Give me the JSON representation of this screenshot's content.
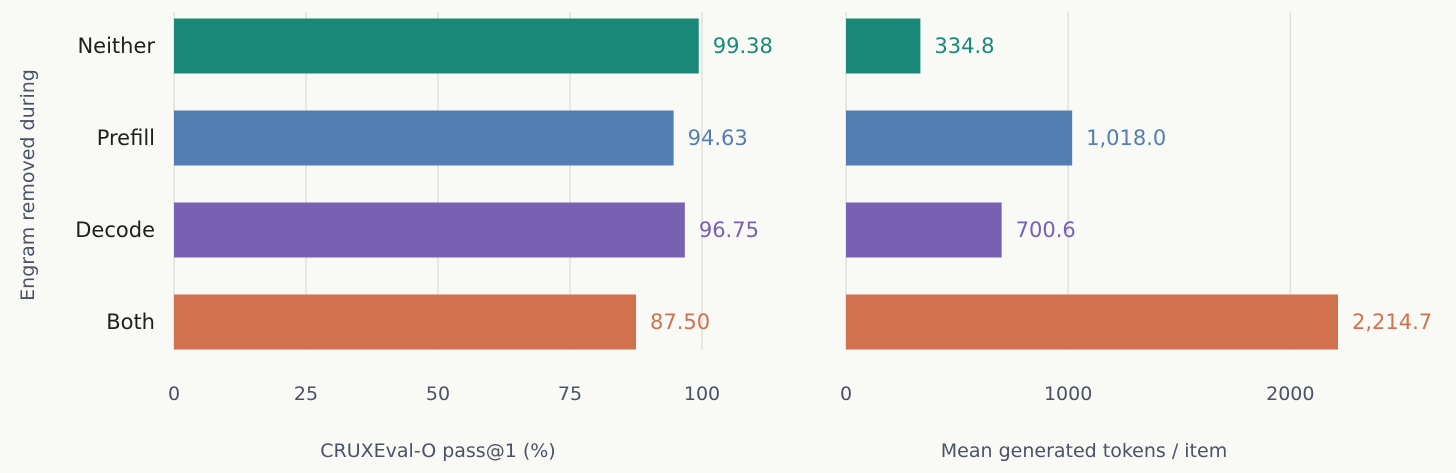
{
  "chart_data": {
    "type": "bar",
    "orientation": "horizontal",
    "shared_ylabel": "Engram removed during",
    "categories": [
      "Neither",
      "Prefill",
      "Decode",
      "Both"
    ],
    "colors": [
      "#1a8878",
      "#537eb1",
      "#7860b3",
      "#d17150"
    ],
    "panels": [
      {
        "xlabel": "CRUXEval-O pass@1 (%)",
        "xlim": [
          0,
          100
        ],
        "xticks": [
          0,
          25,
          50,
          75,
          100
        ],
        "xtick_labels": [
          "0",
          "25",
          "50",
          "75",
          "100"
        ],
        "values": [
          99.38,
          94.63,
          96.75,
          87.5
        ],
        "value_labels": [
          "99.38",
          "94.63",
          "96.75",
          "87.50"
        ],
        "grid": true
      },
      {
        "xlabel": "Mean generated tokens / item",
        "xlim": [
          0,
          2214.7
        ],
        "xticks": [
          0,
          1000,
          2000
        ],
        "xtick_labels": [
          "0",
          "1000",
          "2000"
        ],
        "values": [
          334.8,
          1018.0,
          700.6,
          2214.7
        ],
        "value_labels": [
          "334.8",
          "1,018.0",
          "700.6",
          "2,214.7"
        ],
        "grid": true
      }
    ]
  }
}
